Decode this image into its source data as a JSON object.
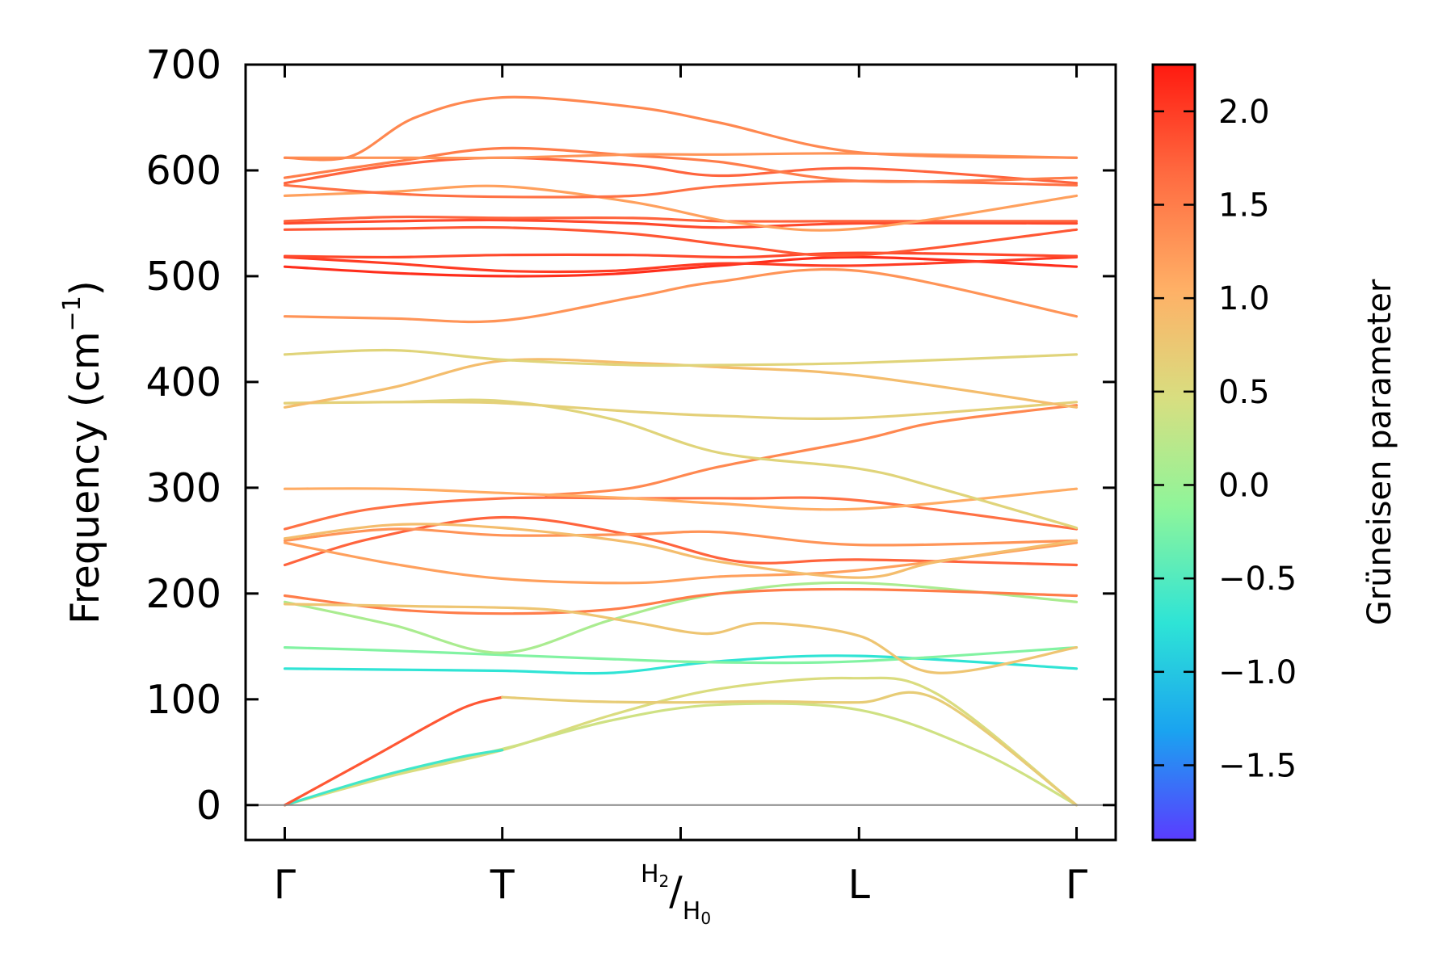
{
  "chart_data": {
    "type": "line",
    "title": "",
    "ylabel": "Frequency (cm",
    "ylabel_sup": "−1",
    "ylabel_close": ")",
    "ylim": [
      -33,
      700
    ],
    "yticks": [
      0,
      100,
      200,
      300,
      400,
      500,
      600,
      700
    ],
    "xticks": [
      {
        "pos": 0.0,
        "label": "Γ"
      },
      {
        "pos": 1.0,
        "label": "T"
      },
      {
        "pos": 1.82,
        "label": "/",
        "sup": "H2",
        "sub": "H0"
      },
      {
        "pos": 2.64,
        "label": "L"
      },
      {
        "pos": 3.64,
        "label": "Γ"
      }
    ],
    "xlim": [
      -0.18,
      3.82
    ],
    "colorbar": {
      "label": "Grüneisen parameter",
      "vmin": -1.9,
      "vmax": 2.25,
      "ticks": [
        -1.5,
        -1.0,
        -0.5,
        0.0,
        0.5,
        1.0,
        1.5,
        2.0
      ],
      "tick_labels": [
        "−1.5",
        "−1.0",
        "−0.5",
        "0.0",
        "0.5",
        "1.0",
        "1.5",
        "2.0"
      ],
      "colormap": [
        "#5a3cff",
        "#1aa3f0",
        "#2ee4d6",
        "#8ff59a",
        "#d8de80",
        "#ffb066",
        "#ff6a40",
        "#ff1a10"
      ]
    },
    "zero_line": 0,
    "bands": [
      {
        "g": 0.5,
        "points": [
          [
            0,
            0
          ],
          [
            0.5,
            28
          ],
          [
            1.0,
            52
          ],
          [
            1.5,
            85
          ],
          [
            2.0,
            110
          ],
          [
            2.6,
            120
          ],
          [
            3.0,
            105
          ],
          [
            3.64,
            0
          ]
        ]
      },
      {
        "g": 0.4,
        "points": [
          [
            0,
            0
          ],
          [
            0.5,
            30
          ],
          [
            1.0,
            53
          ],
          [
            1.5,
            80
          ],
          [
            2.0,
            95
          ],
          [
            2.64,
            90
          ],
          [
            3.2,
            50
          ],
          [
            3.64,
            0
          ]
        ]
      },
      {
        "g": -0.6,
        "points": [
          [
            0,
            0
          ],
          [
            0.4,
            25
          ],
          [
            0.8,
            45
          ],
          [
            1.0,
            52
          ]
        ]
      },
      {
        "g": 1.8,
        "points": [
          [
            0,
            0
          ],
          [
            0.4,
            45
          ],
          [
            0.8,
            90
          ],
          [
            1.0,
            102
          ]
        ]
      },
      {
        "g": 0.7,
        "points": [
          [
            1.0,
            102
          ],
          [
            1.4,
            98
          ],
          [
            1.8,
            97
          ],
          [
            2.2,
            98
          ],
          [
            2.64,
            97
          ],
          [
            3.0,
            100
          ],
          [
            3.64,
            0
          ]
        ]
      },
      {
        "g": -0.7,
        "points": [
          [
            0,
            129
          ],
          [
            0.5,
            128
          ],
          [
            1.0,
            127
          ],
          [
            1.5,
            125
          ],
          [
            2.0,
            136
          ],
          [
            2.64,
            141
          ],
          [
            3.64,
            129
          ]
        ]
      },
      {
        "g": -0.2,
        "points": [
          [
            0,
            149
          ],
          [
            0.5,
            146
          ],
          [
            1.0,
            142
          ],
          [
            1.5,
            138
          ],
          [
            2.0,
            135
          ],
          [
            2.64,
            136
          ],
          [
            3.64,
            149
          ]
        ]
      },
      {
        "g": 0.1,
        "points": [
          [
            0,
            192
          ],
          [
            0.5,
            170
          ],
          [
            1.0,
            144
          ],
          [
            1.5,
            175
          ],
          [
            2.0,
            200
          ],
          [
            2.64,
            210
          ],
          [
            3.64,
            192
          ]
        ]
      },
      {
        "g": 1.5,
        "points": [
          [
            0,
            198
          ],
          [
            0.5,
            185
          ],
          [
            1.0,
            181
          ],
          [
            1.5,
            185
          ],
          [
            2.0,
            200
          ],
          [
            2.64,
            204
          ],
          [
            3.64,
            198
          ]
        ]
      },
      {
        "g": 0.8,
        "points": [
          [
            0,
            190
          ],
          [
            0.6,
            188
          ],
          [
            1.2,
            185
          ],
          [
            1.6,
            173
          ],
          [
            1.94,
            162
          ],
          [
            2.2,
            172
          ],
          [
            2.64,
            160
          ],
          [
            3.0,
            125
          ],
          [
            3.64,
            149
          ]
        ]
      },
      {
        "g": 1.7,
        "points": [
          [
            0,
            227
          ],
          [
            0.4,
            252
          ],
          [
            1.0,
            272
          ],
          [
            1.6,
            255
          ],
          [
            2.1,
            230
          ],
          [
            2.64,
            232
          ],
          [
            3.64,
            227
          ]
        ]
      },
      {
        "g": 1.2,
        "points": [
          [
            0,
            248
          ],
          [
            0.5,
            228
          ],
          [
            1.0,
            214
          ],
          [
            1.6,
            210
          ],
          [
            2.0,
            216
          ],
          [
            2.64,
            222
          ],
          [
            3.64,
            248
          ]
        ]
      },
      {
        "g": 1.3,
        "points": [
          [
            0,
            250
          ],
          [
            0.5,
            261
          ],
          [
            1.0,
            255
          ],
          [
            1.6,
            256
          ],
          [
            2.0,
            258
          ],
          [
            2.64,
            246
          ],
          [
            3.64,
            250
          ]
        ]
      },
      {
        "g": 0.9,
        "points": [
          [
            0,
            252
          ],
          [
            0.5,
            265
          ],
          [
            1.0,
            262
          ],
          [
            1.6,
            248
          ],
          [
            2.0,
            230
          ],
          [
            2.64,
            215
          ],
          [
            3.0,
            230
          ],
          [
            3.64,
            250
          ]
        ]
      },
      {
        "g": 1.6,
        "points": [
          [
            0,
            261
          ],
          [
            0.4,
            280
          ],
          [
            1.0,
            290
          ],
          [
            1.6,
            290
          ],
          [
            2.1,
            290
          ],
          [
            2.64,
            288
          ],
          [
            3.64,
            261
          ]
        ]
      },
      {
        "g": 1.4,
        "points": [
          [
            1.2,
            293
          ],
          [
            1.6,
            300
          ],
          [
            2.0,
            320
          ],
          [
            2.64,
            345
          ],
          [
            3.0,
            362
          ],
          [
            3.64,
            378
          ]
        ]
      },
      {
        "g": 1.1,
        "points": [
          [
            0,
            299
          ],
          [
            0.5,
            299
          ],
          [
            1.0,
            295
          ],
          [
            1.6,
            290
          ],
          [
            2.0,
            285
          ],
          [
            2.64,
            280
          ],
          [
            3.64,
            299
          ]
        ]
      },
      {
        "g": 0.6,
        "points": [
          [
            0,
            380
          ],
          [
            0.5,
            381
          ],
          [
            1.0,
            382
          ],
          [
            1.5,
            365
          ],
          [
            2.0,
            333
          ],
          [
            2.64,
            318
          ],
          [
            3.0,
            300
          ],
          [
            3.64,
            262
          ]
        ]
      },
      {
        "g": 0.65,
        "points": [
          [
            0,
            380
          ],
          [
            0.5,
            381
          ],
          [
            1.0,
            380
          ],
          [
            1.6,
            372
          ],
          [
            2.0,
            368
          ],
          [
            2.64,
            366
          ],
          [
            3.64,
            381
          ]
        ]
      },
      {
        "g": 0.9,
        "points": [
          [
            0,
            376
          ],
          [
            0.5,
            395
          ],
          [
            1.0,
            420
          ],
          [
            1.6,
            418
          ],
          [
            2.0,
            414
          ],
          [
            2.64,
            406
          ],
          [
            3.64,
            376
          ]
        ]
      },
      {
        "g": 0.6,
        "points": [
          [
            0,
            426
          ],
          [
            0.5,
            430
          ],
          [
            1.0,
            421
          ],
          [
            1.6,
            416
          ],
          [
            2.0,
            416
          ],
          [
            2.64,
            418
          ],
          [
            3.64,
            426
          ]
        ]
      },
      {
        "g": 1.3,
        "points": [
          [
            0,
            462
          ],
          [
            0.5,
            460
          ],
          [
            1.0,
            458
          ],
          [
            1.6,
            480
          ],
          [
            2.0,
            495
          ],
          [
            2.64,
            505
          ],
          [
            3.64,
            462
          ]
        ]
      },
      {
        "g": 2.1,
        "points": [
          [
            0,
            509
          ],
          [
            0.5,
            503
          ],
          [
            1.0,
            500
          ],
          [
            1.5,
            502
          ],
          [
            2.0,
            510
          ],
          [
            2.64,
            518
          ],
          [
            3.64,
            509
          ]
        ]
      },
      {
        "g": 2.0,
        "points": [
          [
            0,
            518
          ],
          [
            0.5,
            512
          ],
          [
            1.0,
            505
          ],
          [
            1.5,
            505
          ],
          [
            2.0,
            512
          ],
          [
            2.64,
            510
          ],
          [
            3.64,
            518
          ]
        ]
      },
      {
        "g": 1.9,
        "points": [
          [
            0,
            519
          ],
          [
            0.5,
            518
          ],
          [
            1.0,
            520
          ],
          [
            1.6,
            520
          ],
          [
            2.1,
            518
          ],
          [
            2.64,
            522
          ],
          [
            3.64,
            519
          ]
        ]
      },
      {
        "g": 1.8,
        "points": [
          [
            0,
            544
          ],
          [
            0.5,
            545
          ],
          [
            1.0,
            546
          ],
          [
            1.6,
            540
          ],
          [
            2.1,
            528
          ],
          [
            2.64,
            520
          ],
          [
            3.64,
            544
          ]
        ]
      },
      {
        "g": 1.9,
        "points": [
          [
            0,
            550
          ],
          [
            0.5,
            552
          ],
          [
            1.0,
            553
          ],
          [
            1.6,
            550
          ],
          [
            2.0,
            546
          ],
          [
            2.64,
            550
          ],
          [
            3.64,
            550
          ]
        ]
      },
      {
        "g": 1.7,
        "points": [
          [
            0,
            552
          ],
          [
            0.5,
            556
          ],
          [
            1.0,
            555
          ],
          [
            1.6,
            555
          ],
          [
            2.0,
            552
          ],
          [
            2.64,
            552
          ],
          [
            3.64,
            552
          ]
        ]
      },
      {
        "g": 1.2,
        "points": [
          [
            0,
            576
          ],
          [
            0.5,
            580
          ],
          [
            1.0,
            585
          ],
          [
            1.6,
            570
          ],
          [
            2.1,
            550
          ],
          [
            2.64,
            545
          ],
          [
            3.64,
            576
          ]
        ]
      },
      {
        "g": 1.6,
        "points": [
          [
            0,
            586
          ],
          [
            0.5,
            578
          ],
          [
            1.0,
            575
          ],
          [
            1.6,
            576
          ],
          [
            2.0,
            585
          ],
          [
            2.64,
            590
          ],
          [
            3.64,
            586
          ]
        ]
      },
      {
        "g": 1.7,
        "points": [
          [
            0,
            588
          ],
          [
            0.5,
            605
          ],
          [
            1.0,
            612
          ],
          [
            1.6,
            605
          ],
          [
            2.0,
            595
          ],
          [
            2.64,
            602
          ],
          [
            3.64,
            588
          ]
        ]
      },
      {
        "g": 1.5,
        "points": [
          [
            0,
            593
          ],
          [
            0.5,
            608
          ],
          [
            1.0,
            621
          ],
          [
            1.6,
            614
          ],
          [
            2.0,
            608
          ],
          [
            2.64,
            590
          ],
          [
            3.64,
            593
          ]
        ]
      },
      {
        "g": 1.3,
        "points": [
          [
            0,
            612
          ],
          [
            0.5,
            612
          ],
          [
            1.0,
            612
          ],
          [
            1.6,
            615
          ],
          [
            2.0,
            615
          ],
          [
            2.64,
            616
          ],
          [
            3.64,
            612
          ]
        ]
      },
      {
        "g": 1.4,
        "points": [
          [
            0,
            612
          ],
          [
            0.3,
            613
          ],
          [
            0.6,
            650
          ],
          [
            1.0,
            669
          ],
          [
            1.6,
            660
          ],
          [
            2.0,
            645
          ],
          [
            2.64,
            617
          ],
          [
            3.64,
            612
          ]
        ]
      }
    ]
  }
}
